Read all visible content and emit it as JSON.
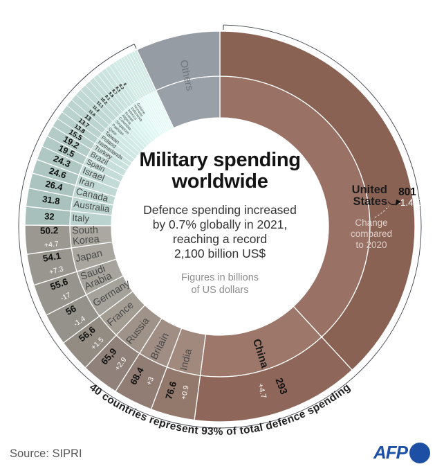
{
  "header": {
    "title_lines": [
      "Military spending",
      "worldwide"
    ],
    "subtitle_lines": [
      "Defence spending increased",
      "by 0.7% globally in 2021,",
      "reaching a record",
      "2,100 billion US$"
    ],
    "unit_note_lines": [
      "Figures in billions",
      "of US dollars"
    ]
  },
  "annotations": {
    "change_note_lines": [
      "Change",
      "compared",
      "to 2020"
    ],
    "arc_note": "40 countries represent 93% of total defence spending"
  },
  "footer": {
    "source": "Source: SIPRI",
    "logo": "AFP"
  },
  "colors": {
    "background": "#ffffff",
    "value_text": "#121212",
    "change_text": "#ffffff",
    "name_text": "#4a4a4a",
    "tiny_name_text": "#4e5a58",
    "others_label": "#6f757d",
    "arc_line": "#3a3f47",
    "arc_note_text": "#1f1f1f",
    "us_annotation_light": "#ddd1ca",
    "afp_blue": "#1d4fa4"
  },
  "chart_data": {
    "type": "pie",
    "title": "Military spending worldwide",
    "unit": "billions of US dollars",
    "total": 2100,
    "start_angle_deg": 0,
    "direction": "clockwise",
    "series": [
      {
        "name": "United States",
        "value": 801,
        "display": "801",
        "change": "-1.4%",
        "label_lines": [
          "United",
          "States"
        ],
        "color_outer": "#8a6254",
        "color_inner": "#9a7265",
        "custom_annotation": true
      },
      {
        "name": "China",
        "value": 293,
        "display": "293",
        "change": "+4.7",
        "color_outer": "#8e675a",
        "color_inner": "#9d776a"
      },
      {
        "name": "India",
        "value": 76.6,
        "display": "76.6",
        "change": "+0.9",
        "color_outer": "#93786c",
        "color_inner": "#a2897d"
      },
      {
        "name": "Britain",
        "value": 68.4,
        "display": "68.4",
        "change": "+3",
        "color_outer": "#917d74",
        "color_inner": "#a08d84"
      },
      {
        "name": "Russia",
        "value": 65.9,
        "display": "65,9",
        "change": "+2.9",
        "color_outer": "#90827a",
        "color_inner": "#9f9289"
      },
      {
        "name": "France",
        "value": 56.6,
        "display": "56,6",
        "change": "+1.5",
        "color_outer": "#928c83",
        "color_inner": "#a29c93"
      },
      {
        "name": "Germany",
        "value": 56,
        "display": "56",
        "change": "-1.4",
        "color_outer": "#94928a",
        "color_inner": "#a4a29a"
      },
      {
        "name": "Saudi Arabia",
        "value": 55.6,
        "display": "55.6",
        "change": "-17",
        "label_lines": [
          "Saudi",
          "Arabia"
        ],
        "color_outer": "#96948c",
        "color_inner": "#a6a49c"
      },
      {
        "name": "Japan",
        "value": 54.1,
        "display": "54.1",
        "change": "+7.3",
        "color_outer": "#98968e",
        "color_inner": "#a8a69e"
      },
      {
        "name": "South Korea",
        "value": 50.2,
        "display": "50.2",
        "change": "+4.7",
        "label_lines": [
          "South",
          "Korea"
        ],
        "color_outer": "#9a9890",
        "color_inner": "#aaa8a0"
      },
      {
        "name": "Italy",
        "value": 32,
        "display": "32",
        "color_outer": "#a7c0bb",
        "color_inner": "#bad3cf"
      },
      {
        "name": "Australia",
        "value": 31.8,
        "display": "31.8",
        "color_outer": "#a9c2bd",
        "color_inner": "#bcd5d1"
      },
      {
        "name": "Canada",
        "value": 26.4,
        "display": "26.4",
        "color_outer": "#abc4bf",
        "color_inner": "#bed7d3"
      },
      {
        "name": "Iran",
        "value": 24.6,
        "display": "24.6",
        "color_outer": "#adc6c1",
        "color_inner": "#c0d9d5"
      },
      {
        "name": "Israel",
        "value": 24.3,
        "display": "24.3",
        "color_outer": "#afc8c3",
        "color_inner": "#c2dbd7"
      },
      {
        "name": "Spain",
        "value": 19.5,
        "display": "19.5",
        "color_outer": "#b1cac5",
        "color_inner": "#c4ddd9"
      },
      {
        "name": "Brazil",
        "value": 19.2,
        "display": "19.2",
        "color_outer": "#b3ccc7",
        "color_inner": "#c6dfdb"
      },
      {
        "name": "Turkey",
        "value": 15.5,
        "display": "15.5",
        "color_outer": "#b5cec9",
        "color_inner": "#c8e1dd"
      },
      {
        "name": "Netherlands",
        "value": 13.8,
        "display": "13.8",
        "color_outer": "#b7d0cb",
        "color_inner": "#cae3df"
      },
      {
        "name": "Poland",
        "value": 13.7,
        "display": "13.7",
        "color_outer": "#b9d2cd",
        "color_inner": "#cce5e1"
      },
      {
        "name": "Taiwan",
        "value": 13,
        "display": "13",
        "color_outer": "#bbd4cf",
        "color_inner": "#cee7e3"
      },
      {
        "name": "Qatar",
        "value": 11.6,
        "display": "11.6",
        "color_outer": "#bdd6d1",
        "color_inner": "#d0e9e5"
      },
      {
        "name": "Pakistan",
        "value": 11.3,
        "display": "11.3",
        "color_outer": "#bfd8d3",
        "color_inner": "#d2ebe7"
      },
      {
        "name": "Singapore",
        "value": 11.1,
        "display": "11.1",
        "color_outer": "#c1dad5",
        "color_inner": "#d4ede9"
      },
      {
        "name": "Colombia",
        "value": 10.2,
        "display": "10.2",
        "color_outer": "#c3dcd7",
        "color_inner": "#d6efeb"
      },
      {
        "name": "Algeria",
        "value": 9.1,
        "display": "9.1",
        "color_outer": "#c5ded9",
        "color_inner": "#d8f1ed"
      },
      {
        "name": "Kuwait",
        "value": 8.8,
        "display": "8.8",
        "color_outer": "#c7e0db",
        "color_inner": "#daf3ef"
      },
      {
        "name": "Mexico",
        "value": 8.7,
        "display": "8.7",
        "color_outer": "#c9e2dd",
        "color_inner": "#dcf5f1"
      },
      {
        "name": "Indonesia",
        "value": 8.3,
        "display": "8.3",
        "color_outer": "#cbe4df",
        "color_inner": "#def6f2"
      },
      {
        "name": "Norway",
        "value": 8.2,
        "display": "8.2",
        "color_outer": "#cde6e1",
        "color_inner": "#e0f7f3"
      },
      {
        "name": "Greece",
        "value": 8,
        "display": "8",
        "color_outer": "#cfe8e3",
        "color_inner": "#e2f8f4"
      }
    ],
    "unlabeled_countries": {
      "count": 9,
      "total_value": 46.5,
      "color_outer": "#d2eae5",
      "color_inner": "#e5faf5"
    },
    "others": {
      "name": "Others",
      "value": 147,
      "color_outer": "#969ca4",
      "color_inner": "#9aa0a8"
    }
  }
}
